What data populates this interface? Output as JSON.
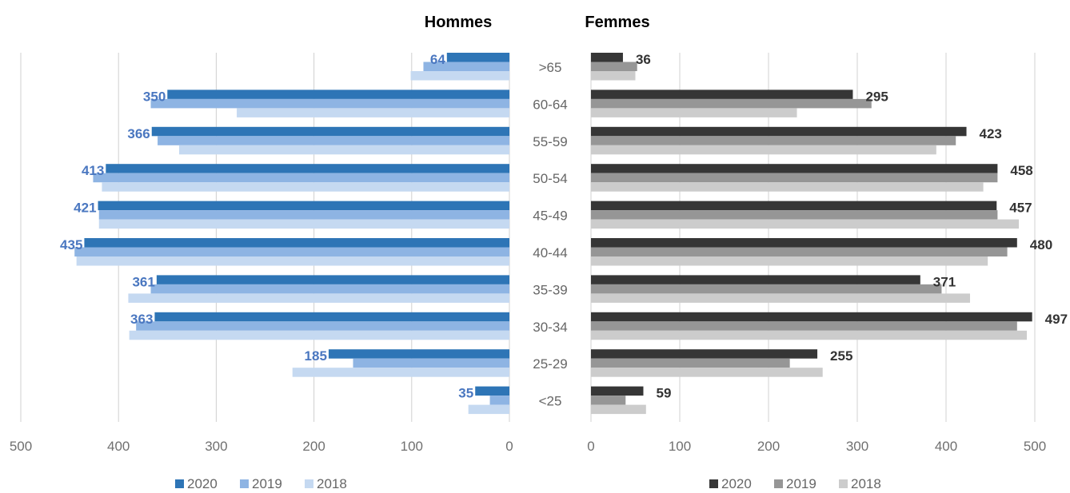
{
  "chart_data": [
    {
      "type": "bar",
      "orientation": "horizontal",
      "direction": "reversed",
      "title": "Hommes",
      "title_color": "#4a77c0",
      "categories": [
        ">65",
        "60-64",
        "55-59",
        "50-54",
        "45-49",
        "40-44",
        "35-39",
        "30-34",
        "25-29",
        "<25"
      ],
      "xlim": [
        0,
        500
      ],
      "xticks": [
        "500",
        "400",
        "300",
        "200",
        "100",
        "0"
      ],
      "grid": true,
      "legend_position": "bottom",
      "series": [
        {
          "name": "2020",
          "color": "#2e75b6",
          "values": [
            64,
            350,
            366,
            413,
            421,
            435,
            361,
            363,
            185,
            35
          ]
        },
        {
          "name": "2019",
          "color": "#8eb4e3",
          "values": [
            88,
            367,
            360,
            426,
            420,
            445,
            367,
            382,
            160,
            20
          ]
        },
        {
          "name": "2018",
          "color": "#c5d9f1",
          "values": [
            101,
            279,
            338,
            417,
            420,
            443,
            390,
            389,
            222,
            42
          ]
        }
      ],
      "data_labels": [
        "64",
        "350",
        "366",
        "413",
        "421",
        "435",
        "361",
        "363",
        "185",
        "35"
      ]
    },
    {
      "type": "bar",
      "orientation": "horizontal",
      "title": "Femmes",
      "title_color": "#000000",
      "categories": [
        ">65",
        "60-64",
        "55-59",
        "50-54",
        "45-49",
        "40-44",
        "35-39",
        "30-34",
        "25-29",
        "<25"
      ],
      "xlim": [
        0,
        500
      ],
      "xticks": [
        "0",
        "100",
        "200",
        "300",
        "400",
        "500"
      ],
      "grid": true,
      "legend_position": "bottom",
      "series": [
        {
          "name": "2020",
          "color": "#363636",
          "values": [
            36,
            295,
            423,
            458,
            457,
            480,
            371,
            497,
            255,
            59
          ]
        },
        {
          "name": "2019",
          "color": "#969696",
          "values": [
            52,
            316,
            411,
            458,
            458,
            469,
            395,
            480,
            224,
            39
          ]
        },
        {
          "name": "2018",
          "color": "#cccccc",
          "values": [
            50,
            232,
            389,
            442,
            482,
            447,
            427,
            491,
            261,
            62
          ]
        }
      ],
      "data_labels": [
        "36",
        "295",
        "423",
        "458",
        "457",
        "480",
        "371",
        "497",
        "255",
        "59"
      ]
    }
  ]
}
